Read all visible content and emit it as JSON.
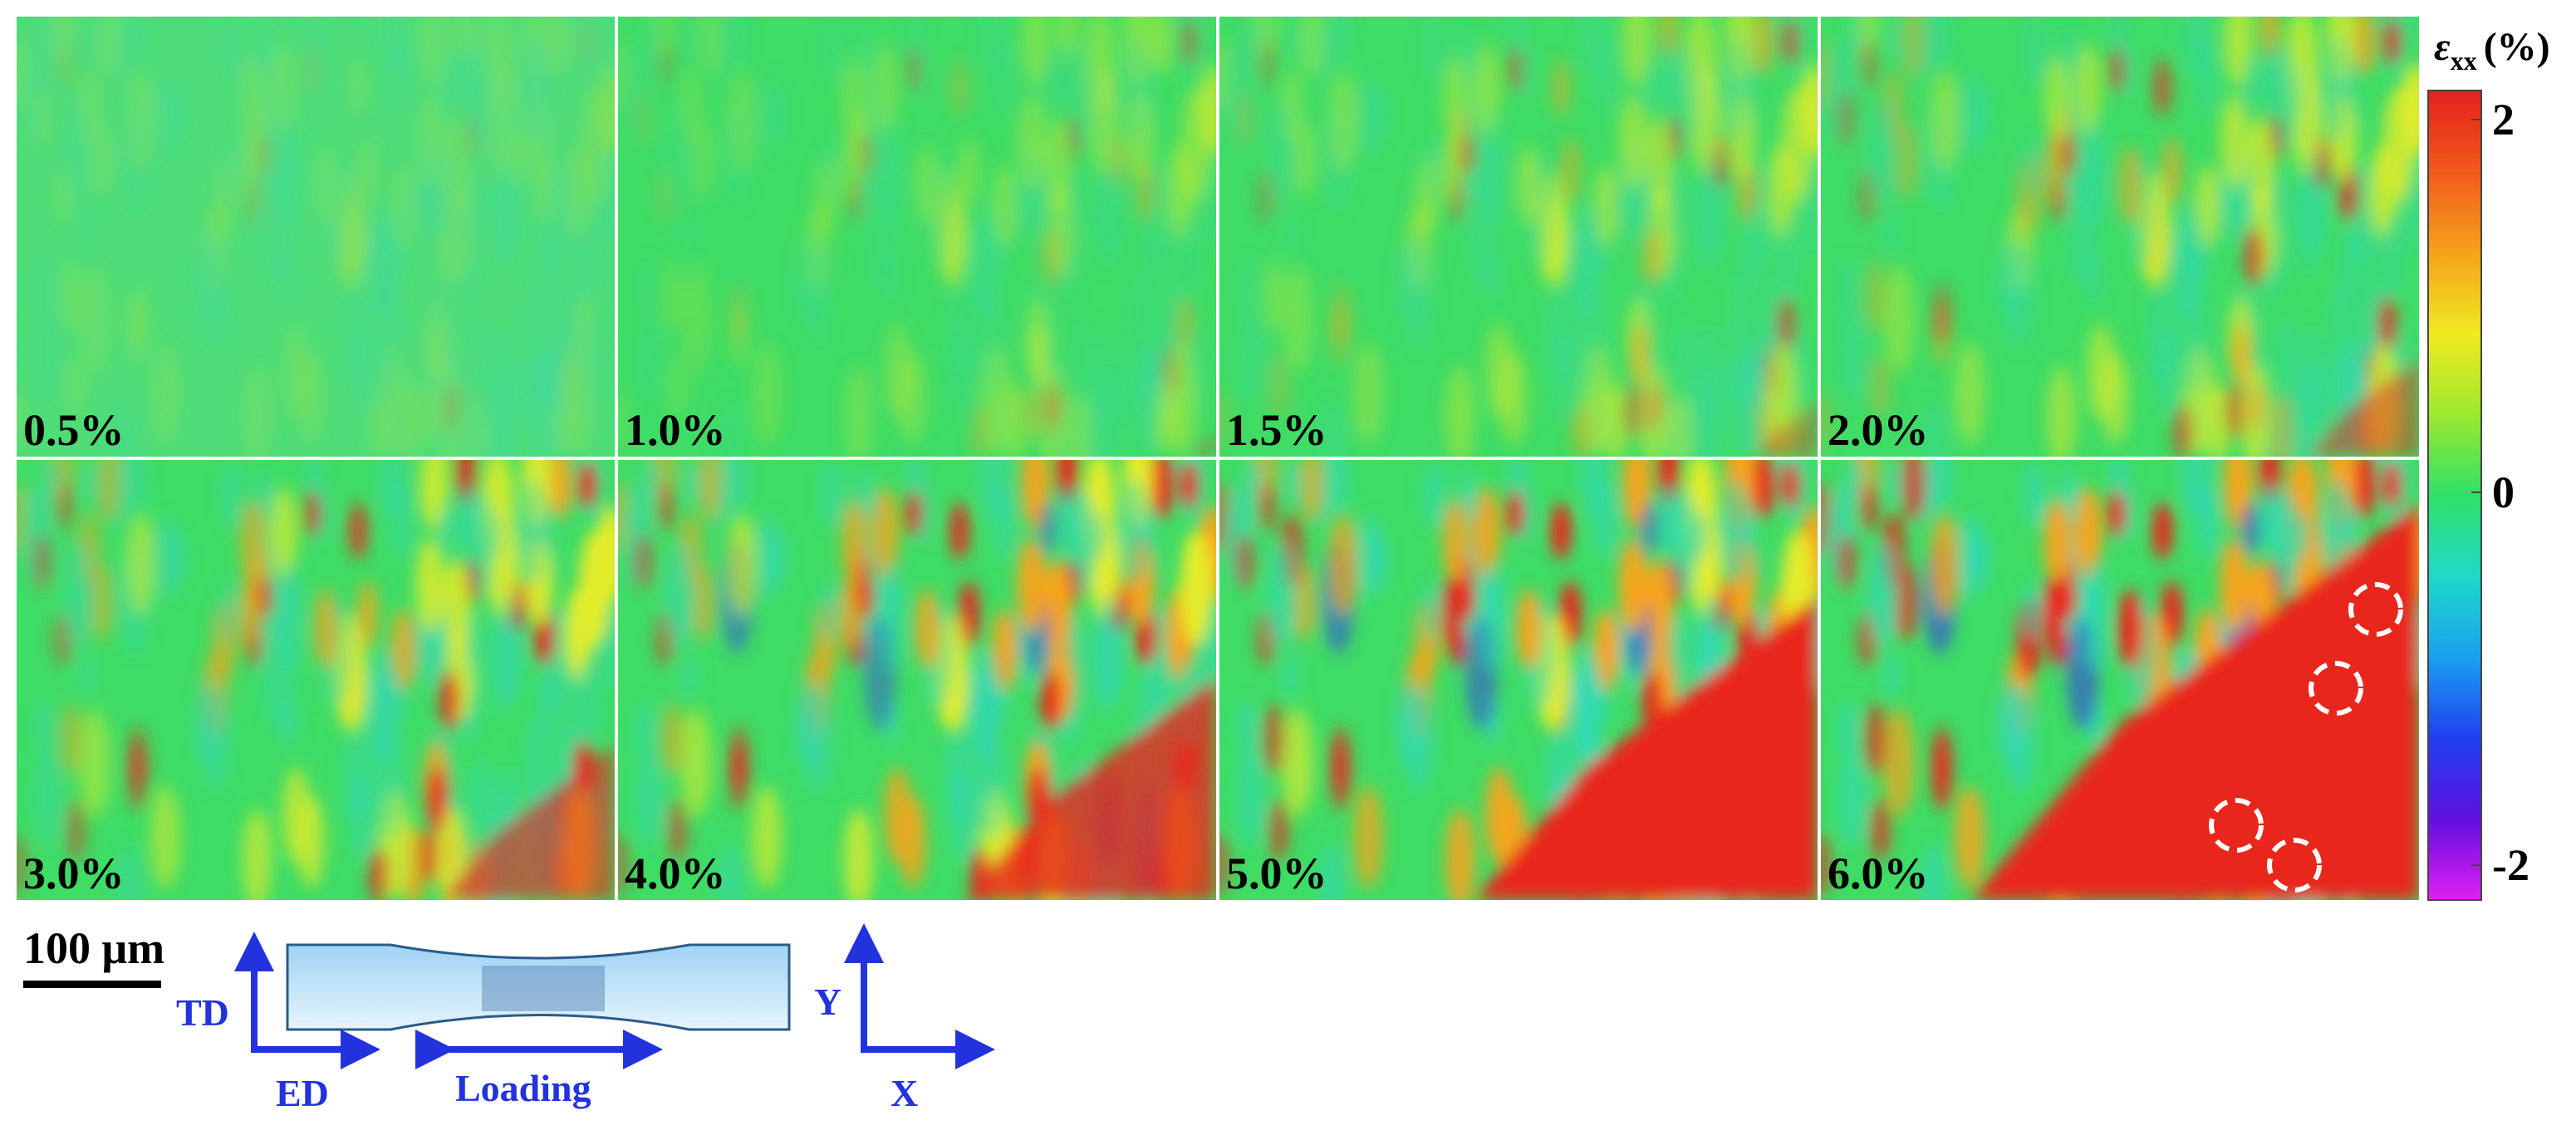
{
  "panels": [
    {
      "label": "0.5%"
    },
    {
      "label": "1.0%"
    },
    {
      "label": "1.5%"
    },
    {
      "label": "2.0%"
    },
    {
      "label": "3.0%"
    },
    {
      "label": "4.0%"
    },
    {
      "label": "5.0%"
    },
    {
      "label": "6.0%"
    }
  ],
  "colorbar": {
    "symbol": "ε",
    "subscript": "xx",
    "unit": "(%)",
    "lim": [
      -2,
      2
    ],
    "ticks": [
      2,
      0,
      -2
    ]
  },
  "scale_bar": {
    "label": "100 μm"
  },
  "schematic": {
    "td": "TD",
    "ed": "ED",
    "loading": "Loading",
    "y": "Y",
    "x": "X"
  }
}
